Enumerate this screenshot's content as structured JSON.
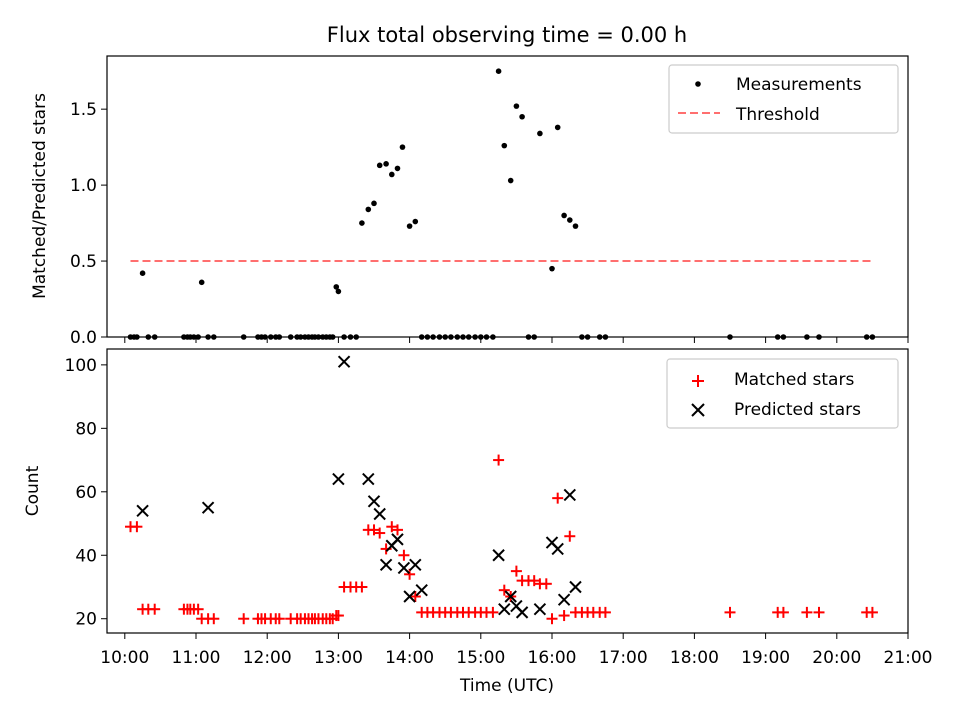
{
  "chart_data": [
    {
      "type": "scatter",
      "title": "Flux total observing time = 0.00 h",
      "xlabel": "",
      "ylabel": "Matched/Predicted stars",
      "xlim": [
        9.75,
        21.0
      ],
      "ylim": [
        0,
        1.85
      ],
      "yticks": [
        0.0,
        0.5,
        1.0,
        1.5
      ],
      "ytick_labels": [
        "0.0",
        "0.5",
        "1.0",
        "1.5"
      ],
      "legend_position": "top-right",
      "series": [
        {
          "name": "Measurements",
          "marker": "dot",
          "color": "#000000",
          "x": [
            10.08,
            10.13,
            10.17,
            10.25,
            10.33,
            10.42,
            10.83,
            10.88,
            10.92,
            10.97,
            11.03,
            11.08,
            11.17,
            11.25,
            11.67,
            11.87,
            11.92,
            11.97,
            12.05,
            12.12,
            12.17,
            12.33,
            12.42,
            12.47,
            12.53,
            12.58,
            12.63,
            12.67,
            12.72,
            12.78,
            12.83,
            12.88,
            12.92,
            12.97,
            13.0,
            13.08,
            13.17,
            13.25,
            13.33,
            13.42,
            13.5,
            13.58,
            13.67,
            13.75,
            13.83,
            13.9,
            14.0,
            14.08,
            14.17,
            14.25,
            14.33,
            14.42,
            14.5,
            14.58,
            14.67,
            14.75,
            14.83,
            14.92,
            15.0,
            15.08,
            15.17,
            15.25,
            15.33,
            15.42,
            15.5,
            15.58,
            15.67,
            15.75,
            15.83,
            16.0,
            16.08,
            16.17,
            16.25,
            16.33,
            16.42,
            16.5,
            16.67,
            16.75,
            18.5,
            19.17,
            19.25,
            19.58,
            19.75,
            20.42,
            20.5
          ],
          "y": [
            0,
            0,
            0,
            0.42,
            0,
            0,
            0,
            0,
            0,
            0,
            0,
            0.36,
            0,
            0,
            0,
            0,
            0,
            0,
            0,
            0,
            0,
            0,
            0,
            0,
            0,
            0,
            0,
            0,
            0,
            0,
            0,
            0,
            0,
            0.33,
            0.3,
            0,
            0,
            0,
            0.75,
            0.84,
            0.88,
            1.13,
            1.14,
            1.07,
            1.11,
            1.25,
            0.73,
            0.76,
            0,
            0,
            0,
            0,
            0,
            0,
            0,
            0,
            0,
            0,
            0,
            0,
            0,
            1.75,
            1.26,
            1.03,
            1.52,
            1.45,
            0,
            0,
            1.34,
            0.45,
            1.38,
            0.8,
            0.77,
            0.73,
            0,
            0,
            0,
            0,
            0,
            0,
            0,
            0,
            0,
            0,
            0
          ]
        },
        {
          "name": "Threshold",
          "marker": "dashed-line",
          "color": "#ff6f6f",
          "x": [
            10.08,
            20.5
          ],
          "y": [
            0.5,
            0.5
          ]
        }
      ]
    },
    {
      "type": "scatter",
      "title": "",
      "xlabel": "Time (UTC)",
      "ylabel": "Count",
      "xlim": [
        9.75,
        21.0
      ],
      "ylim": [
        15.5,
        105
      ],
      "yticks": [
        20,
        40,
        60,
        80,
        100
      ],
      "ytick_labels": [
        "20",
        "40",
        "60",
        "80",
        "100"
      ],
      "xticks": [
        10,
        11,
        12,
        13,
        14,
        15,
        16,
        17,
        18,
        19,
        20,
        21
      ],
      "xtick_labels": [
        "10:00",
        "11:00",
        "12:00",
        "13:00",
        "14:00",
        "15:00",
        "16:00",
        "17:00",
        "18:00",
        "19:00",
        "20:00",
        "21:00"
      ],
      "legend_position": "top-right",
      "series": [
        {
          "name": "Matched stars",
          "marker": "plus",
          "color": "#ff0000",
          "x": [
            10.08,
            10.17,
            10.25,
            10.33,
            10.42,
            10.83,
            10.88,
            10.92,
            10.97,
            11.03,
            11.08,
            11.17,
            11.25,
            11.67,
            11.87,
            11.92,
            11.97,
            12.05,
            12.12,
            12.17,
            12.33,
            12.42,
            12.47,
            12.53,
            12.58,
            12.63,
            12.67,
            12.72,
            12.78,
            12.83,
            12.88,
            12.92,
            12.97,
            13.0,
            13.08,
            13.17,
            13.25,
            13.33,
            13.42,
            13.5,
            13.58,
            13.67,
            13.75,
            13.83,
            13.92,
            14.0,
            14.08,
            14.17,
            14.25,
            14.33,
            14.42,
            14.5,
            14.58,
            14.67,
            14.75,
            14.83,
            14.92,
            15.0,
            15.08,
            15.17,
            15.25,
            15.33,
            15.42,
            15.5,
            15.58,
            15.67,
            15.75,
            15.83,
            15.92,
            16.0,
            16.08,
            16.17,
            16.25,
            16.33,
            16.42,
            16.5,
            16.58,
            16.67,
            16.75,
            18.5,
            19.17,
            19.25,
            19.58,
            19.75,
            20.42,
            20.5
          ],
          "y": [
            49,
            49,
            23,
            23,
            23,
            23,
            23,
            23,
            23,
            23,
            20,
            20,
            20,
            20,
            20,
            20,
            20,
            20,
            20,
            20,
            20,
            20,
            20,
            20,
            20,
            20,
            20,
            20,
            20,
            20,
            20,
            20,
            21,
            21,
            30,
            30,
            30,
            30,
            48,
            48,
            47,
            42,
            49,
            48,
            40,
            34,
            27,
            22,
            22,
            22,
            22,
            22,
            22,
            22,
            22,
            22,
            22,
            22,
            22,
            22,
            70,
            29,
            27,
            35,
            32,
            32,
            32,
            31,
            31,
            20,
            58,
            21,
            46,
            22,
            22,
            22,
            22,
            22,
            22,
            22,
            22,
            22,
            22,
            22,
            22,
            22
          ]
        },
        {
          "name": "Predicted stars",
          "marker": "cross",
          "color": "#000000",
          "x": [
            10.25,
            11.17,
            13.0,
            13.08,
            13.42,
            13.5,
            13.58,
            13.67,
            13.75,
            13.83,
            13.92,
            14.0,
            14.08,
            14.17,
            15.25,
            15.33,
            15.42,
            15.5,
            15.58,
            15.83,
            16.0,
            16.08,
            16.17,
            16.25,
            16.33
          ],
          "y": [
            54,
            55,
            64,
            101,
            64,
            57,
            53,
            37,
            43,
            45,
            36,
            27,
            37,
            29,
            40,
            23,
            27,
            24,
            22,
            23,
            44,
            42,
            26,
            59,
            30
          ]
        }
      ]
    }
  ]
}
